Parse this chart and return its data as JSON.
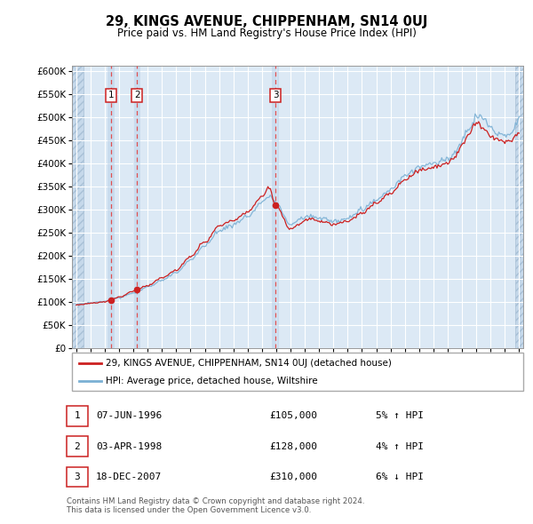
{
  "title": "29, KINGS AVENUE, CHIPPENHAM, SN14 0UJ",
  "subtitle": "Price paid vs. HM Land Registry's House Price Index (HPI)",
  "ylim": [
    0,
    612500
  ],
  "yticks": [
    0,
    50000,
    100000,
    150000,
    200000,
    250000,
    300000,
    350000,
    400000,
    450000,
    500000,
    550000,
    600000
  ],
  "xlim_start": 1993.7,
  "xlim_end": 2025.3,
  "background_color": "#ffffff",
  "plot_bg_color": "#dce9f5",
  "grid_color": "#ffffff",
  "legend_label_red": "29, KINGS AVENUE, CHIPPENHAM, SN14 0UJ (detached house)",
  "legend_label_blue": "HPI: Average price, detached house, Wiltshire",
  "footer_line1": "Contains HM Land Registry data © Crown copyright and database right 2024.",
  "footer_line2": "This data is licensed under the Open Government Licence v3.0.",
  "transactions": [
    {
      "num": 1,
      "date": "07-JUN-1996",
      "price": 105000,
      "pct": "5%",
      "dir": "↑",
      "year": 1996.44
    },
    {
      "num": 2,
      "date": "03-APR-1998",
      "price": 128000,
      "pct": "4%",
      "dir": "↑",
      "year": 1998.25
    },
    {
      "num": 3,
      "date": "18-DEC-2007",
      "price": 310000,
      "pct": "6%",
      "dir": "↓",
      "year": 2007.96
    }
  ],
  "hatch_left_end": 1994.5,
  "hatch_right_start": 2024.7
}
